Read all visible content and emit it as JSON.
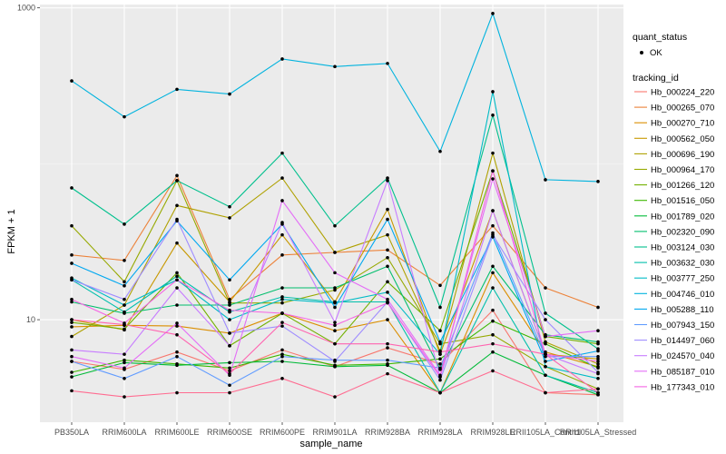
{
  "chart_data": {
    "type": "line",
    "xlabel": "sample_name",
    "ylabel": "FPKM + 1",
    "y_scale": "log10",
    "ylim": [
      2.2,
      1050
    ],
    "y_ticks": [
      10,
      1000
    ],
    "y_tick_labels": [
      "10",
      "1000"
    ],
    "grid": true,
    "legend_placement": "right",
    "categories": [
      "PB350LA",
      "RRIM600LA",
      "RRIM600LE",
      "RRIM600SE",
      "RRIM600PE",
      "RRIM901LA",
      "RRIM928BA",
      "RRIM928LA",
      "RRIM928LE",
      "RRII105LA_Control",
      "RRII105LA_Stressed"
    ],
    "quant_legend": {
      "title": "quant_status",
      "label": "OK"
    },
    "legend_title": "tracking_id",
    "series": [
      {
        "name": "Hb_000224_220",
        "color": "#F8766D",
        "values": [
          5.4,
          4.8,
          6.2,
          4.7,
          6.4,
          5.0,
          6.6,
          5.2,
          11.5,
          3.4,
          3.3
        ]
      },
      {
        "name": "Hb_000265_070",
        "color": "#EC8239",
        "values": [
          26.0,
          24.0,
          84.0,
          13.5,
          26.0,
          27.0,
          28.0,
          16.6,
          40.0,
          16.0,
          12.0
        ]
      },
      {
        "name": "Hb_000270_710",
        "color": "#DB8E00",
        "values": [
          9.0,
          9.2,
          9.1,
          8.2,
          11.0,
          8.5,
          10.0,
          3.4,
          20.0,
          6.2,
          5.0
        ]
      },
      {
        "name": "Hb_000562_050",
        "color": "#C79800",
        "values": [
          10.0,
          8.6,
          31.0,
          13.0,
          35.0,
          13.0,
          51.0,
          6.0,
          50.0,
          6.0,
          5.6
        ]
      },
      {
        "name": "Hb_000696_190",
        "color": "#AFA100",
        "values": [
          7.8,
          12.4,
          54.0,
          45.0,
          81.0,
          27.0,
          35.0,
          6.3,
          117.0,
          7.2,
          5.2
        ]
      },
      {
        "name": "Hb_000964_170",
        "color": "#96A900",
        "values": [
          40.0,
          17.5,
          78.0,
          12.8,
          12.8,
          15.5,
          25.0,
          7.0,
          8.0,
          5.0,
          3.6
        ]
      },
      {
        "name": "Hb_001266_120",
        "color": "#72B000",
        "values": [
          9.6,
          8.7,
          20.0,
          6.8,
          11.0,
          7.0,
          17.5,
          8.5,
          90.0,
          7.8,
          7.0
        ]
      },
      {
        "name": "Hb_001516_050",
        "color": "#3DB700",
        "values": [
          4.6,
          5.5,
          5.2,
          4.9,
          6.0,
          5.1,
          5.2,
          5.6,
          9.8,
          7.0,
          4.9
        ]
      },
      {
        "name": "Hb_001789_020",
        "color": "#00BA38",
        "values": [
          4.3,
          5.3,
          5.1,
          5.3,
          5.4,
          5.0,
          5.1,
          3.4,
          6.2,
          4.4,
          3.3
        ]
      },
      {
        "name": "Hb_002320_090",
        "color": "#00BE6C",
        "values": [
          13.0,
          11.0,
          12.4,
          12.4,
          16.0,
          16.0,
          22.0,
          4.8,
          22.0,
          8.0,
          7.2
        ]
      },
      {
        "name": "Hb_003124_030",
        "color": "#00C08D",
        "values": [
          70.0,
          41.0,
          78.0,
          53.0,
          117.0,
          40.0,
          81.0,
          12.0,
          205.0,
          11.0,
          6.5
        ]
      },
      {
        "name": "Hb_003632_030",
        "color": "#00BFAB",
        "values": [
          18.0,
          11.2,
          19.0,
          11.2,
          14.0,
          13.0,
          13.0,
          3.4,
          16.0,
          4.4,
          3.4
        ]
      },
      {
        "name": "Hb_003777_250",
        "color": "#00BBC6",
        "values": [
          18.5,
          12.4,
          18.0,
          10.0,
          13.5,
          12.8,
          15.0,
          6.0,
          290.0,
          5.0,
          4.2
        ]
      },
      {
        "name": "Hb_004746_010",
        "color": "#00B3DE",
        "values": [
          340.0,
          200.0,
          300.0,
          280.0,
          470.0,
          420.0,
          440.0,
          120.0,
          920.0,
          79.0,
          77.0
        ]
      },
      {
        "name": "Hb_005288_110",
        "color": "#00A8F0",
        "values": [
          23.0,
          16.5,
          43.0,
          18.0,
          41.0,
          12.0,
          44.0,
          7.2,
          34.0,
          5.4,
          6.3
        ]
      },
      {
        "name": "Hb_007943_150",
        "color": "#619CFF",
        "values": [
          5.4,
          4.2,
          5.8,
          3.8,
          5.8,
          5.5,
          5.5,
          4.9,
          36.0,
          5.8,
          5.8
        ]
      },
      {
        "name": "Hb_014497_060",
        "color": "#9F8CFF",
        "values": [
          18.0,
          13.5,
          44.0,
          8.2,
          9.1,
          5.4,
          13.0,
          4.1,
          35.0,
          10.0,
          4.6
        ]
      },
      {
        "name": "Hb_024570_040",
        "color": "#C77CFF",
        "values": [
          6.4,
          6.0,
          16.0,
          6.8,
          42.0,
          9.6,
          78.0,
          4.3,
          50.0,
          6.0,
          4.5
        ]
      },
      {
        "name": "Hb_085187_010",
        "color": "#E46DF7",
        "values": [
          5.8,
          4.9,
          9.5,
          4.4,
          58.0,
          20.0,
          13.5,
          4.4,
          80.0,
          7.8,
          8.5
        ]
      },
      {
        "name": "Hb_177343_010",
        "color": "#F564E3",
        "values": [
          13.5,
          9.5,
          18.0,
          11.5,
          11.0,
          9.2,
          12.8,
          4.3,
          90.0,
          6.0,
          5.4
        ]
      },
      {
        "name": "",
        "color": "#FF6C91",
        "values": [
          3.5,
          3.2,
          3.4,
          3.4,
          4.2,
          3.2,
          4.5,
          3.4,
          4.7,
          3.4,
          3.6
        ]
      },
      {
        "name": "",
        "color": "#FF64B0",
        "values": [
          10.0,
          9.3,
          8.0,
          4.5,
          9.6,
          7.0,
          7.0,
          6.2,
          7.0,
          6.0,
          3.4
        ]
      }
    ]
  }
}
